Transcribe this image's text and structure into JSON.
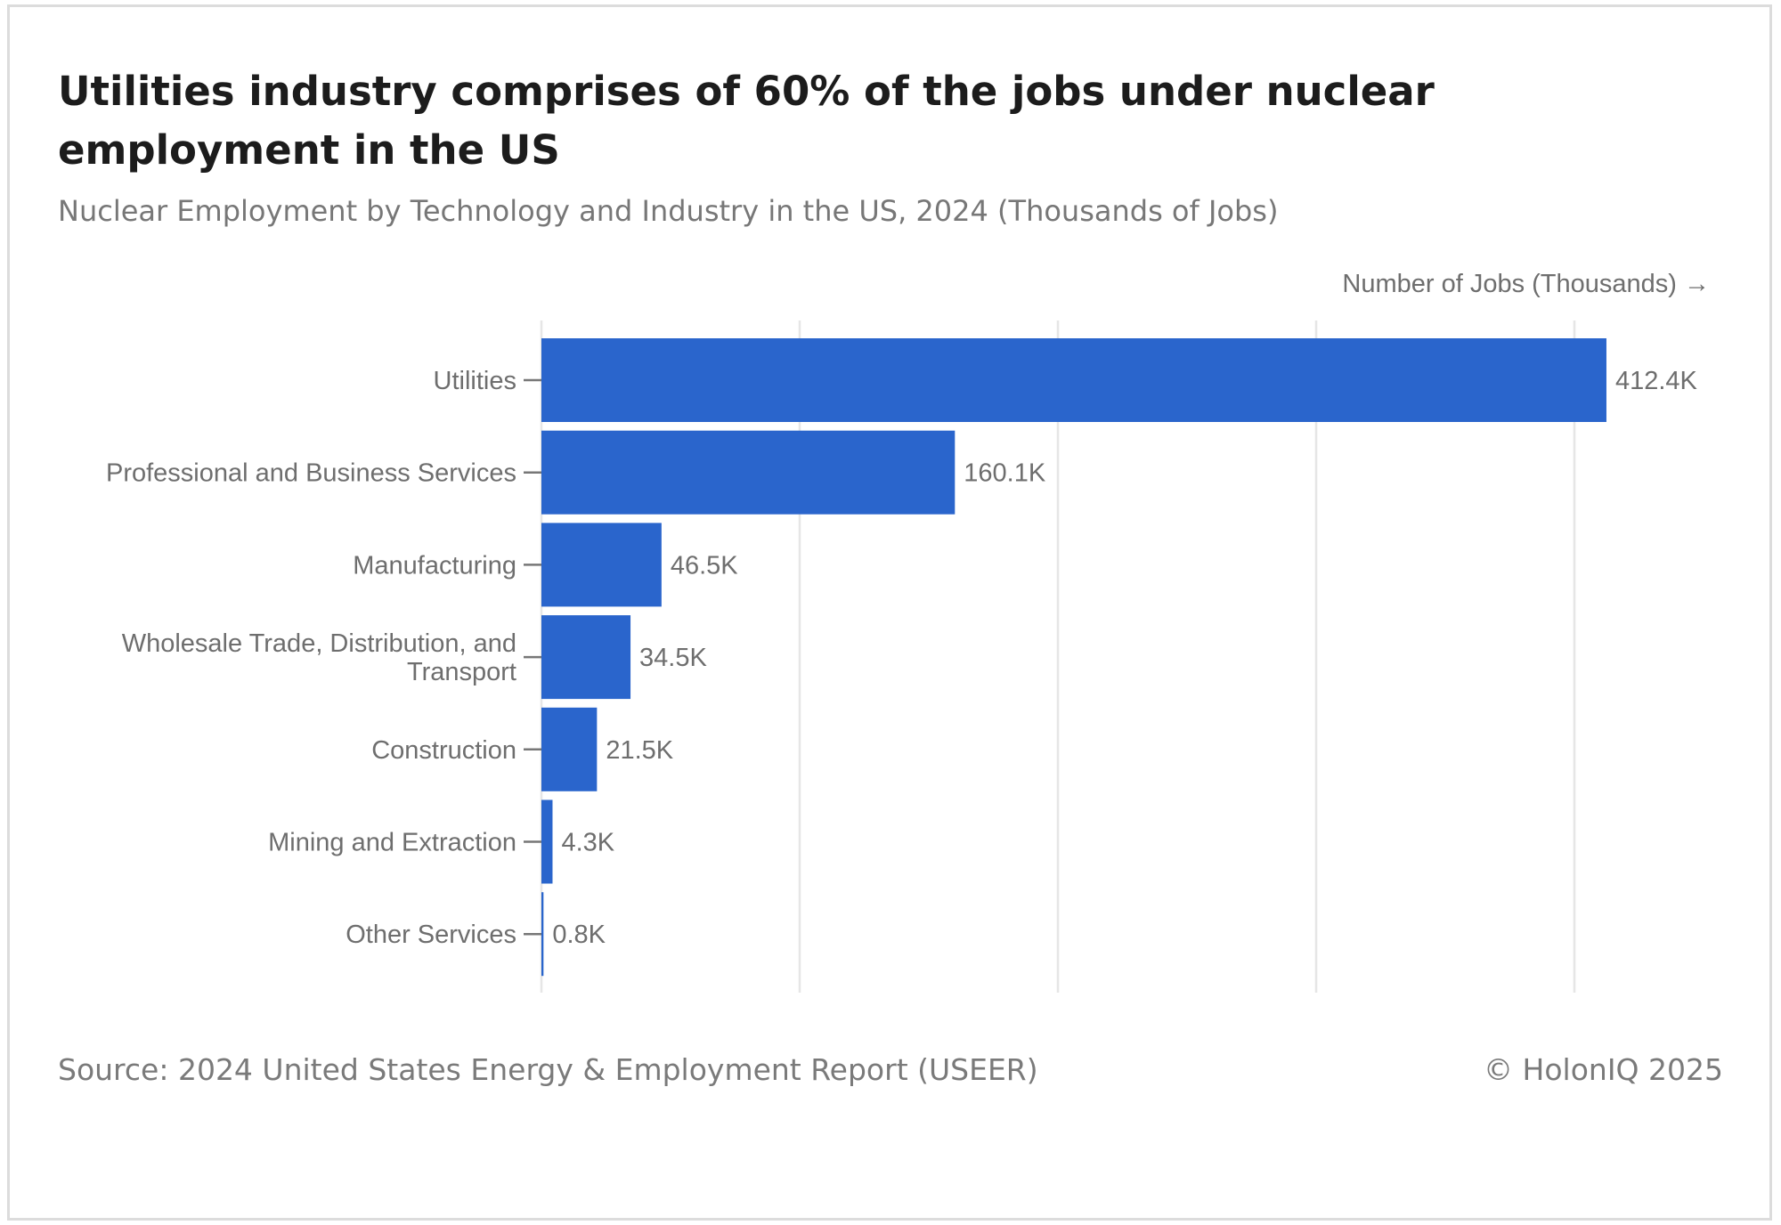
{
  "header": {
    "title": "Utilities industry comprises of 60% of the jobs under nuclear employment in the US",
    "subtitle": "Nuclear Employment by Technology and Industry in the US, 2024 (Thousands of Jobs)"
  },
  "footer": {
    "source": "Source: 2024 United States Energy & Employment Report (USEER)",
    "copyright": "© HolonIQ 2025"
  },
  "colors": {
    "bar": "#2a65cc",
    "grid": "#e6e6e6",
    "text": "#6e6e6e"
  },
  "chart_data": {
    "type": "bar",
    "orientation": "horizontal",
    "title": "Utilities industry comprises of 60% of the jobs under nuclear employment in the US",
    "subtitle": "Nuclear Employment by Technology and Industry in the US, 2024 (Thousands of Jobs)",
    "xlabel": "Number of Jobs (Thousands) →",
    "ylabel": "",
    "categories": [
      "Utilities",
      "Professional and Business Services",
      "Manufacturing",
      "Wholesale Trade, Distribution, and Transport",
      "Construction",
      "Mining and Extraction",
      "Other Services"
    ],
    "category_lines": [
      [
        "Utilities"
      ],
      [
        "Professional and Business Services"
      ],
      [
        "Manufacturing"
      ],
      [
        "Wholesale Trade, Distribution, and",
        "Transport"
      ],
      [
        "Construction"
      ],
      [
        "Mining and Extraction"
      ],
      [
        "Other Services"
      ]
    ],
    "values": [
      412.4,
      160.1,
      46.5,
      34.5,
      21.5,
      4.3,
      0.8
    ],
    "data_labels": [
      "412.4K",
      "160.1K",
      "46.5K",
      "34.5K",
      "21.5K",
      "4.3K",
      "0.8K"
    ],
    "xlim": [
      0,
      500
    ],
    "gridlines_at": [
      0,
      100,
      200,
      300,
      400
    ],
    "grid": true,
    "x_tick_labels_visible": false
  }
}
